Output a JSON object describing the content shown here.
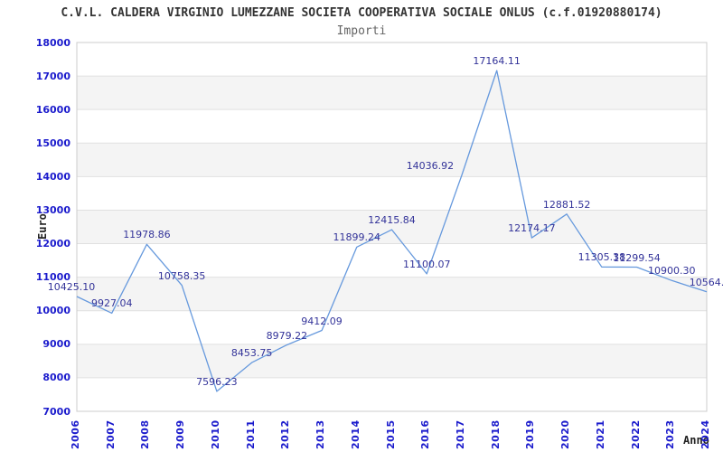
{
  "chart_data": {
    "type": "line",
    "title": "C.V.L. CALDERA VIRGINIO LUMEZZANE SOCIETA COOPERATIVA SOCIALE ONLUS (c.f.01920880174)",
    "subtitle": "Importi",
    "xlabel": "Anno",
    "ylabel": "Euro",
    "x": [
      "2006",
      "2007",
      "2008",
      "2009",
      "2010",
      "2011",
      "2012",
      "2013",
      "2014",
      "2015",
      "2016",
      "2017",
      "2018",
      "2019",
      "2020",
      "2021",
      "2022",
      "2023",
      "2024"
    ],
    "values": [
      10425.1,
      9927.04,
      11978.86,
      10758.35,
      7596.23,
      8453.75,
      8979.22,
      9412.09,
      11899.24,
      12415.84,
      11100.07,
      14036.92,
      17164.11,
      12174.17,
      12881.52,
      11305.38,
      11299.54,
      10900.3,
      10564
    ],
    "point_labels": [
      "10425.10",
      "9927.04",
      "11978.86",
      "10758.35",
      "7596.23",
      "8453.75",
      "8979.22",
      "9412.09",
      "11899.24",
      "12415.84",
      "11100.07",
      "14036.92",
      "17164.11",
      "12174.17",
      "12881.52",
      "11305.38",
      "11299.54",
      "10900.30",
      "10564."
    ],
    "yticks": [
      18000,
      17000,
      16000,
      15000,
      14000,
      13000,
      12000,
      11000,
      10000,
      9000,
      8000,
      7000
    ],
    "ylim": [
      7000,
      18000
    ],
    "grid": "horizontal-gridlines-with-alternating-bands",
    "legend": "none",
    "label_dx": [
      -6,
      0,
      0,
      0,
      0,
      0,
      0,
      0,
      0,
      0,
      0,
      -35,
      0,
      0,
      0,
      0,
      0,
      0,
      0
    ],
    "colors": {
      "line": "#6699dd",
      "tick_label": "#1a1acc",
      "point_label": "#333399",
      "band": "#f4f4f4",
      "gridline": "#e0e0e0",
      "plot_border": "#cccccc",
      "title": "#333333",
      "subtitle": "#666666",
      "axis_label": "#222222",
      "background": "#ffffff"
    }
  }
}
